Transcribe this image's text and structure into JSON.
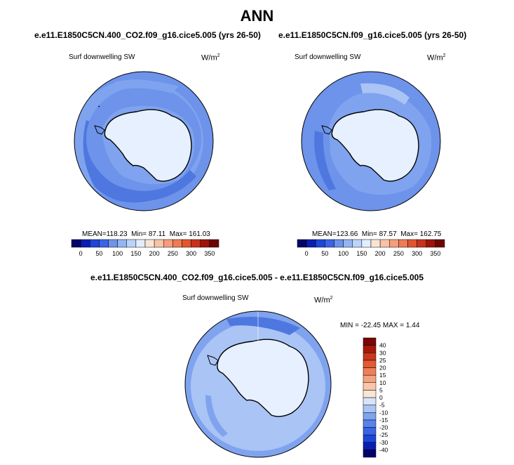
{
  "page": {
    "title": "ANN"
  },
  "colors": {
    "land_fill": "#e6f0ff",
    "ocean_light": "#a9c4f5",
    "ocean_mid": "#7fa3ee",
    "ocean_base": "#6d93ea",
    "ocean_dark": "#4f77e0",
    "coastline": "#000000",
    "frame": "#000000"
  },
  "chart_data": [
    {
      "type": "heatmap",
      "projection": "south-polar-stereographic",
      "title": "e.e11.E1850C5CN.400_CO2.f09_g16.cice5.005 (yrs 26-50)",
      "left_label": "Surf downwelling SW",
      "right_label": "W/m",
      "units_exponent": "2",
      "stats": {
        "mean": "118.23",
        "min": "87.11",
        "max": "161.03"
      },
      "stats_labels": {
        "mean": "MEAN=",
        "min": "Min=",
        "max": "Max="
      },
      "colorbar": {
        "orientation": "horizontal",
        "levels": [
          "0",
          "50",
          "100",
          "150",
          "200",
          "250",
          "300",
          "350"
        ],
        "colors": [
          "#03036b",
          "#0a1fb0",
          "#1e46d8",
          "#3b64e6",
          "#6d93ea",
          "#94b4f2",
          "#bcd3fa",
          "#e2eefe",
          "#fbe3d3",
          "#f8c3a6",
          "#f49e7b",
          "#ef7b55",
          "#e2552e",
          "#c8321a",
          "#9e1309",
          "#6e0505"
        ]
      }
    },
    {
      "type": "heatmap",
      "projection": "south-polar-stereographic",
      "title": "e.e11.E1850C5CN.f09_g16.cice5.005 (yrs 26-50)",
      "left_label": "Surf downwelling SW",
      "right_label": "W/m",
      "units_exponent": "2",
      "stats": {
        "mean": "123.66",
        "min": "87.57",
        "max": "162.75"
      },
      "stats_labels": {
        "mean": "MEAN=",
        "min": "Min=",
        "max": "Max="
      },
      "colorbar": {
        "orientation": "horizontal",
        "levels": [
          "0",
          "50",
          "100",
          "150",
          "200",
          "250",
          "300",
          "350"
        ],
        "colors": [
          "#03036b",
          "#0a1fb0",
          "#1e46d8",
          "#3b64e6",
          "#6d93ea",
          "#94b4f2",
          "#bcd3fa",
          "#e2eefe",
          "#fbe3d3",
          "#f8c3a6",
          "#f49e7b",
          "#ef7b55",
          "#e2552e",
          "#c8321a",
          "#9e1309",
          "#6e0505"
        ]
      }
    },
    {
      "type": "heatmap",
      "projection": "south-polar-stereographic",
      "title": "e.e11.E1850C5CN.400_CO2.f09_g16.cice5.005 - e.e11.E1850C5CN.f09_g16.cice5.005",
      "left_label": "Surf downwelling SW",
      "right_label": "W/m",
      "units_exponent": "2",
      "stats_text": "MIN = -22.45 MAX =  1.44",
      "colorbar": {
        "orientation": "vertical",
        "levels": [
          "-40",
          "-30",
          "-25",
          "-20",
          "-15",
          "-10",
          "-5",
          "0",
          "5",
          "10",
          "15",
          "20",
          "25",
          "30",
          "40"
        ],
        "colors": [
          "#03036b",
          "#0a1fb0",
          "#1e46d8",
          "#3b64e6",
          "#5a82ec",
          "#7fa3ee",
          "#a9c4f5",
          "#d6e5fc",
          "#fbe6d6",
          "#f8c7ab",
          "#f4a37f",
          "#ef7f59",
          "#e35a33",
          "#c9371c",
          "#a3190b",
          "#7a0606"
        ]
      }
    }
  ]
}
